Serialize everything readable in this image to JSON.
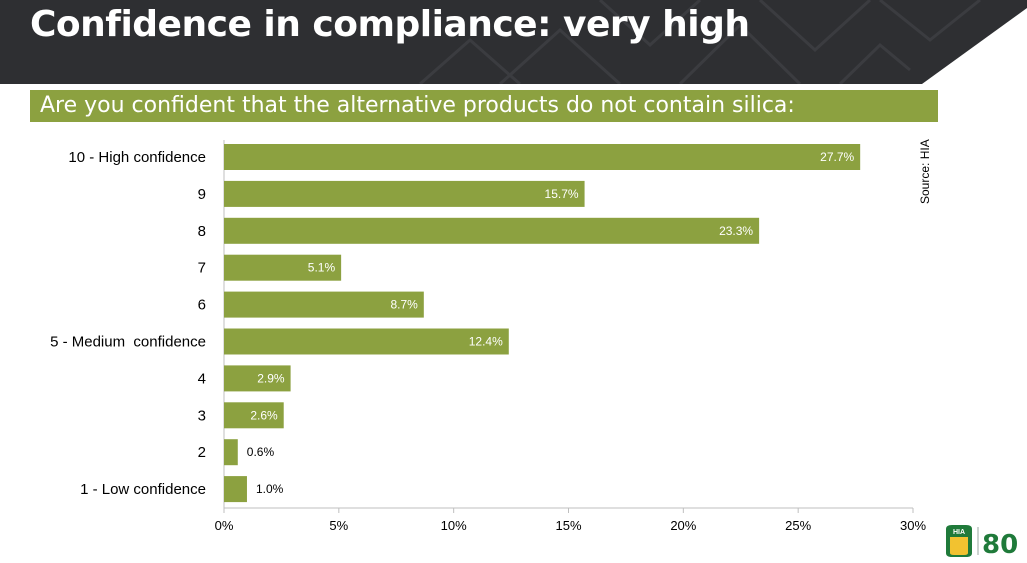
{
  "header": {
    "title": "Confidence in compliance: very high"
  },
  "question": {
    "text": "Are you confident that the alternative products do not contain silica:"
  },
  "source": "Source: HIA",
  "logo": {
    "badge_text": "HIA",
    "number_text": "80"
  },
  "colors": {
    "banner": "#2e2f32",
    "accent": "#8ca140",
    "bar": "#8ca140"
  },
  "chart_data": {
    "type": "bar",
    "orientation": "horizontal",
    "categories": [
      "10 - High confidence",
      "9",
      "8",
      "7",
      "6",
      "5 - Medium  confidence",
      "4",
      "3",
      "2",
      "1 - Low confidence"
    ],
    "values": [
      27.7,
      15.7,
      23.3,
      5.1,
      8.7,
      12.4,
      2.9,
      2.6,
      0.6,
      1.0
    ],
    "value_labels": [
      "27.7%",
      "15.7%",
      "23.3%",
      "5.1%",
      "8.7%",
      "12.4%",
      "2.9%",
      "2.6%",
      "0.6%",
      "1.0%"
    ],
    "xlim": [
      0,
      30
    ],
    "xticks": [
      0,
      5,
      10,
      15,
      20,
      25,
      30
    ],
    "xtick_labels": [
      "0%",
      "5%",
      "10%",
      "15%",
      "20%",
      "25%",
      "30%"
    ],
    "title": "",
    "xlabel": "",
    "ylabel": "",
    "grid": false,
    "legend": "none"
  }
}
